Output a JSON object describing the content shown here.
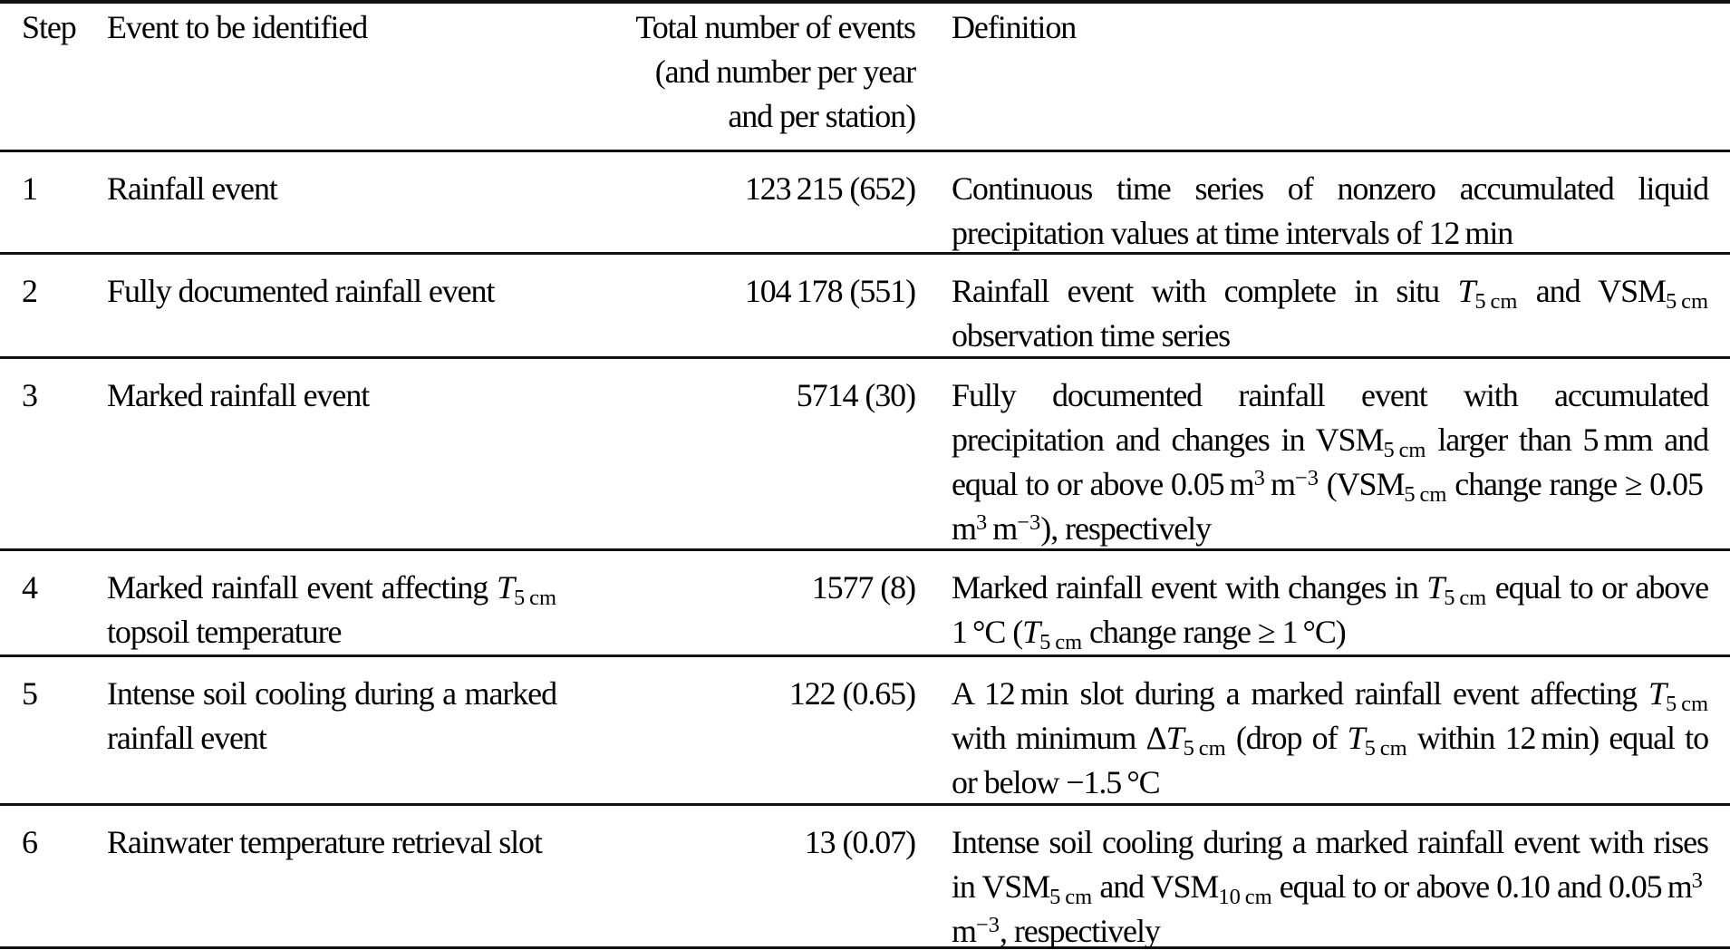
{
  "colors": {
    "text": "#000000",
    "background": "#ffffff",
    "rule": "#111111"
  },
  "table": {
    "columns": {
      "step": "Step",
      "event": "Event to be identified",
      "count_lines": [
        "Total number of events",
        "(and number per year",
        "and per station)"
      ],
      "definition": "Definition"
    },
    "rows": [
      {
        "step": "1",
        "event": [
          {
            "t": "Rainfall event"
          }
        ],
        "count": "123 215 (652)",
        "definition": [
          {
            "t": "Continuous time series of nonzero accumulated liquid precipitation values at time intervals of 12 min"
          }
        ]
      },
      {
        "step": "2",
        "event": [
          {
            "t": "Fully documented rainfall event"
          }
        ],
        "count": "104 178 (551)",
        "definition": [
          {
            "t": "Rainfall event with complete in situ "
          },
          {
            "t": "T",
            "s": "i"
          },
          {
            "t": "5 cm",
            "s": "sub"
          },
          {
            "t": " and VSM"
          },
          {
            "t": "5 cm",
            "s": "sub"
          },
          {
            "t": " observation time series"
          }
        ]
      },
      {
        "step": "3",
        "event": [
          {
            "t": "Marked rainfall event"
          }
        ],
        "count": "5714 (30)",
        "definition": [
          {
            "t": "Fully documented rainfall event with accumulated precipitation and changes in VSM"
          },
          {
            "t": "5 cm",
            "s": "sub"
          },
          {
            "t": " larger than 5 mm and equal to or above 0.05 m"
          },
          {
            "t": "3",
            "s": "sup"
          },
          {
            "t": " m"
          },
          {
            "t": "−3",
            "s": "sup"
          },
          {
            "t": " (VSM"
          },
          {
            "t": "5 cm",
            "s": "sub"
          },
          {
            "t": " change range ≥ 0.05 m"
          },
          {
            "t": "3",
            "s": "sup"
          },
          {
            "t": " m"
          },
          {
            "t": "−3",
            "s": "sup"
          },
          {
            "t": "), respectively"
          }
        ]
      },
      {
        "step": "4",
        "event": [
          {
            "t": "Marked rainfall event affecting "
          },
          {
            "t": "T",
            "s": "i"
          },
          {
            "t": "5 cm",
            "s": "sub"
          },
          {
            "t": " topsoil temperature"
          }
        ],
        "count": "1577 (8)",
        "definition": [
          {
            "t": "Marked rainfall event with changes in "
          },
          {
            "t": "T",
            "s": "i"
          },
          {
            "t": "5 cm",
            "s": "sub"
          },
          {
            "t": " equal to or above 1 °C ("
          },
          {
            "t": "T",
            "s": "i"
          },
          {
            "t": "5 cm",
            "s": "sub"
          },
          {
            "t": " change range ≥ 1 °C)"
          }
        ]
      },
      {
        "step": "5",
        "event": [
          {
            "t": "Intense soil cooling during a marked rainfall event"
          }
        ],
        "count": "122 (0.65)",
        "definition": [
          {
            "t": "A 12 min slot during a marked rainfall event affecting "
          },
          {
            "t": "T",
            "s": "i"
          },
          {
            "t": "5 cm",
            "s": "sub"
          },
          {
            "t": " with minimum Δ"
          },
          {
            "t": "T",
            "s": "i"
          },
          {
            "t": "5 cm",
            "s": "sub"
          },
          {
            "t": " (drop of "
          },
          {
            "t": "T",
            "s": "i"
          },
          {
            "t": "5 cm",
            "s": "sub"
          },
          {
            "t": " within 12 min) equal to or below −1.5 °C"
          }
        ]
      },
      {
        "step": "6",
        "event": [
          {
            "t": "Rainwater temperature retrieval slot"
          }
        ],
        "count": "13 (0.07)",
        "definition": [
          {
            "t": "Intense soil cooling during a marked rainfall event with rises in VSM"
          },
          {
            "t": "5 cm",
            "s": "sub"
          },
          {
            "t": " and VSM"
          },
          {
            "t": "10 cm",
            "s": "sub"
          },
          {
            "t": " equal to or above 0.10 and 0.05 m"
          },
          {
            "t": "3",
            "s": "sup"
          },
          {
            "t": " m"
          },
          {
            "t": "−3",
            "s": "sup"
          },
          {
            "t": ", respectively"
          }
        ]
      }
    ]
  }
}
